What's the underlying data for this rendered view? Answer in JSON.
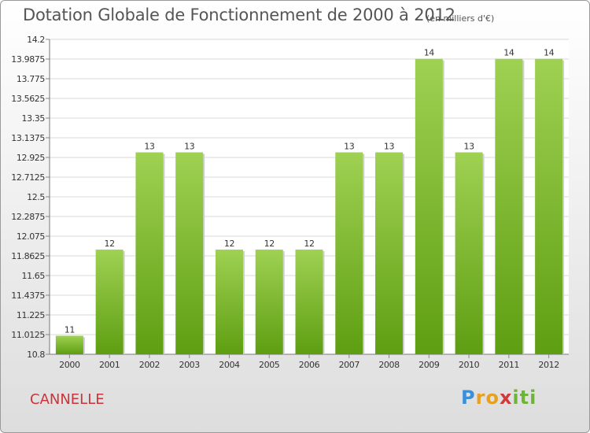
{
  "header": {
    "title": "Dotation Globale de Fonctionnement de 2000 à 2012",
    "subtitle": "(en milliers d'€)"
  },
  "footer": {
    "commune": "CANNELLE",
    "logo": "Proxiti"
  },
  "colors": {
    "bar_top": "#9fd152",
    "bar_bottom": "#5e9e12",
    "accent_commune": "#c8353b"
  },
  "chart_data": {
    "type": "bar",
    "title": "Dotation Globale de Fonctionnement de 2000 à 2012",
    "subtitle": "(en milliers d'€)",
    "categories": [
      "2000",
      "2001",
      "2002",
      "2003",
      "2004",
      "2005",
      "2006",
      "2007",
      "2008",
      "2009",
      "2010",
      "2011",
      "2012"
    ],
    "values": [
      11,
      12,
      13,
      13,
      12,
      12,
      12,
      13,
      13,
      14,
      13,
      14,
      14
    ],
    "bar_values": [
      11.0,
      11.93,
      12.98,
      12.98,
      11.93,
      11.93,
      11.93,
      12.98,
      12.98,
      13.99,
      12.98,
      13.99,
      13.99
    ],
    "data_labels": [
      "11",
      "12",
      "13",
      "13",
      "12",
      "12",
      "12",
      "13",
      "13",
      "14",
      "13",
      "14",
      "14"
    ],
    "ylim": [
      10.8,
      14.2
    ],
    "yticks": [
      10.8,
      11.0125,
      11.225,
      11.4375,
      11.65,
      11.8625,
      12.075,
      12.2875,
      12.5,
      12.7125,
      12.925,
      13.1375,
      13.35,
      13.5625,
      13.775,
      13.9875,
      14.2
    ],
    "ytick_labels": [
      "10.8",
      "11.0125",
      "11.225",
      "11.4375",
      "11.65",
      "11.8625",
      "12.075",
      "12.2875",
      "12.5",
      "12.7125",
      "12.925",
      "13.1375",
      "13.35",
      "13.5625",
      "13.775",
      "13.9875",
      "14.2"
    ],
    "xlabel": "",
    "ylabel": "",
    "grid": true,
    "legend": "none"
  }
}
